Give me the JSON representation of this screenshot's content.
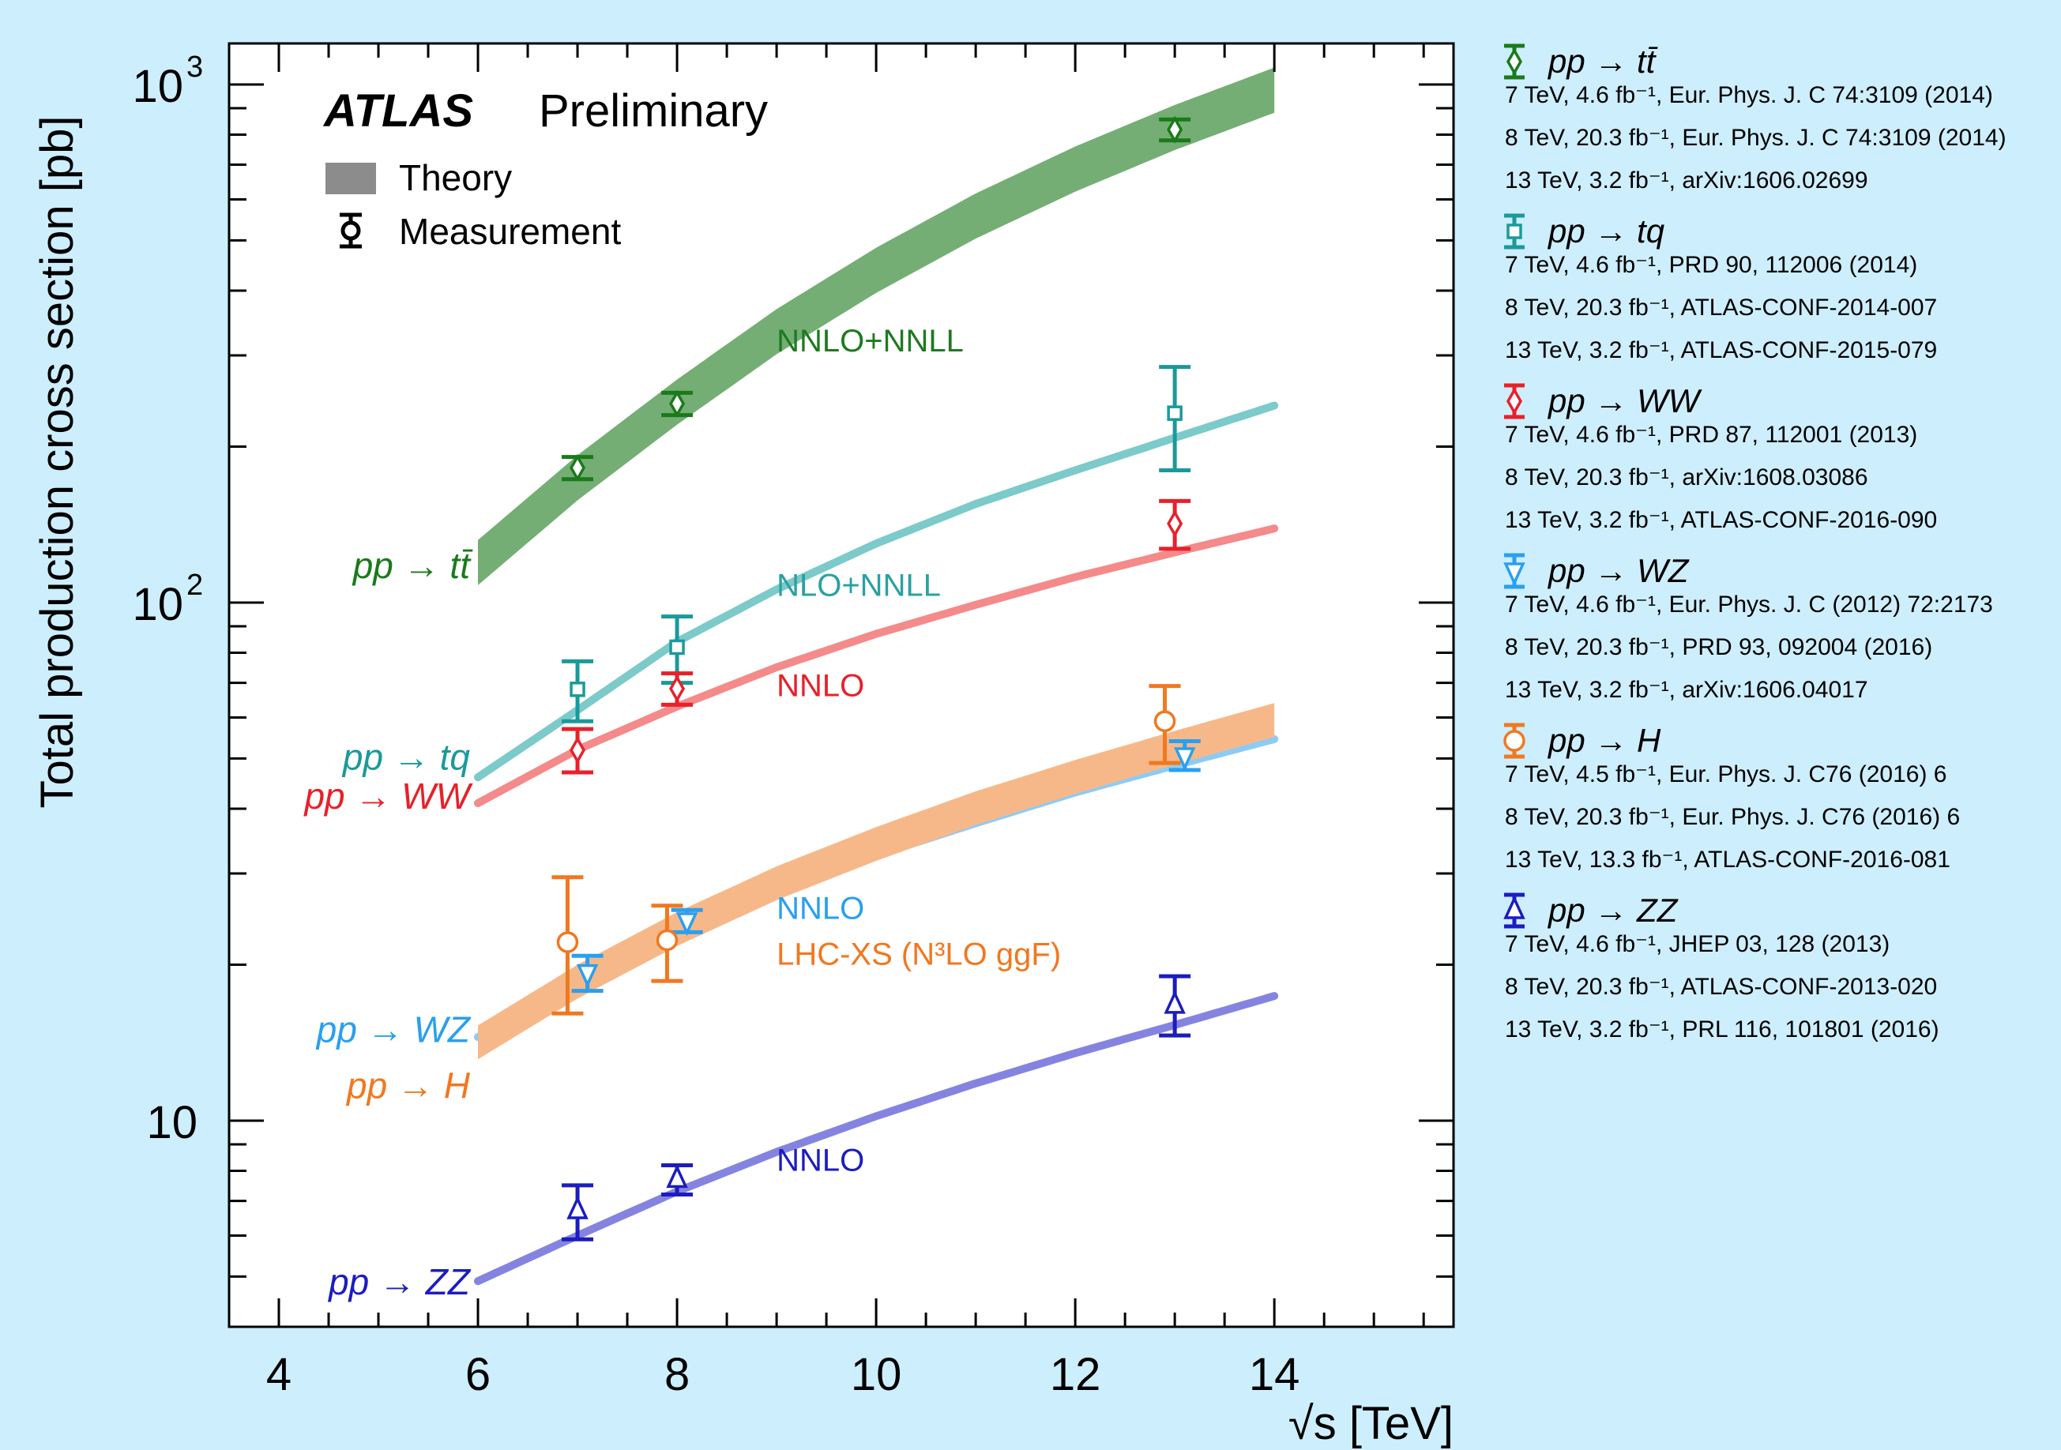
{
  "chart_data": {
    "type": "scatter",
    "title": "",
    "xlabel": "√s  [TeV]",
    "ylabel": "Total production cross section [pb]",
    "xlim": [
      3.5,
      15.8
    ],
    "ylim_log": [
      4.0,
      1200
    ],
    "y_scale": "log",
    "x_ticks": [
      4,
      6,
      8,
      10,
      12,
      14
    ],
    "y_tick_labels": [
      {
        "value": 10,
        "base": "10",
        "exp": ""
      },
      {
        "value": 100,
        "base": "10",
        "exp": "2"
      },
      {
        "value": 1000,
        "base": "10",
        "exp": "3"
      }
    ],
    "header": {
      "atlas": "ATLAS",
      "preliminary": "Preliminary"
    },
    "key": {
      "theory": "Theory",
      "measurement": "Measurement"
    },
    "theory_labels": [
      {
        "text": "NNLO+NNLL",
        "color": "#1f7a1f",
        "x": 9.0,
        "y": 305
      },
      {
        "text": "NLO+NNLL",
        "color": "#2aa1a1",
        "x": 9.0,
        "y": 103
      },
      {
        "text": "NNLO",
        "color": "#e8202a",
        "x": 9.0,
        "y": 66
      },
      {
        "text": "NNLO",
        "color": "#2a9ff0",
        "x": 9.0,
        "y": 24.5
      },
      {
        "text": "LHC-XS (N³LO ggF)",
        "color": "#f07820",
        "x": 9.0,
        "y": 20
      },
      {
        "text": "NNLO",
        "color": "#1c1cc0",
        "x": 9.0,
        "y": 8.0
      }
    ],
    "series": [
      {
        "name": "pp → tt̄",
        "color": "#1a7a1a",
        "band": "#74ae74",
        "marker": "diamond",
        "label_y": 117,
        "theory": {
          "x": [
            6,
            7,
            8,
            9,
            10,
            11,
            12,
            13,
            14
          ],
          "y": [
            120,
            175,
            245,
            335,
            440,
            560,
            690,
            830,
            980
          ]
        },
        "band_rel": 0.1,
        "points": [
          {
            "x": 7,
            "y": 182,
            "lo": 173,
            "hi": 191
          },
          {
            "x": 8,
            "y": 242,
            "lo": 230,
            "hi": 254
          },
          {
            "x": 13,
            "y": 818,
            "lo": 780,
            "hi": 856
          }
        ],
        "refs": [
          "7 TeV, 4.6 fb⁻¹, Eur. Phys. J. C 74:3109 (2014)",
          "8 TeV, 20.3 fb⁻¹, Eur. Phys. J. C 74:3109 (2014)",
          "13 TeV, 3.2 fb⁻¹, arXiv:1606.02699"
        ]
      },
      {
        "name": "pp → tq",
        "color": "#1a9a9a",
        "band": "#7ccaca",
        "marker": "square",
        "label_y": 50,
        "theory": {
          "x": [
            6,
            7,
            8,
            9,
            10,
            11,
            12,
            13,
            14
          ],
          "y": [
            46,
            62,
            84,
            106,
            130,
            155,
            180,
            208,
            240
          ]
        },
        "points": [
          {
            "x": 7,
            "y": 68,
            "lo": 59,
            "hi": 77
          },
          {
            "x": 8,
            "y": 82,
            "lo": 70,
            "hi": 94
          },
          {
            "x": 13,
            "y": 232,
            "lo": 180,
            "hi": 285
          }
        ],
        "refs": [
          "7 TeV, 4.6 fb⁻¹, PRD 90, 112006 (2014)",
          "8 TeV, 20.3 fb⁻¹, ATLAS-CONF-2014-007",
          "13 TeV, 3.2 fb⁻¹, ATLAS-CONF-2015-079"
        ]
      },
      {
        "name": "pp → WW",
        "color": "#e8202a",
        "band": "#f48a8a",
        "marker": "diamond",
        "label_y": 42,
        "theory": {
          "x": [
            6,
            7,
            8,
            9,
            10,
            11,
            12,
            13,
            14
          ],
          "y": [
            41,
            52,
            63,
            75,
            87,
            99,
            112,
            125,
            139
          ]
        },
        "points": [
          {
            "x": 7,
            "y": 51.9,
            "lo": 47,
            "hi": 57
          },
          {
            "x": 8,
            "y": 68.2,
            "lo": 63.5,
            "hi": 73
          },
          {
            "x": 13,
            "y": 142,
            "lo": 127,
            "hi": 157
          }
        ],
        "refs": [
          "7 TeV, 4.6 fb⁻¹, PRD 87, 112001 (2013)",
          "8 TeV, 20.3 fb⁻¹, arXiv:1608.03086",
          "13 TeV, 3.2 fb⁻¹, ATLAS-CONF-2016-090"
        ]
      },
      {
        "name": "pp → WZ",
        "color": "#2a9ff0",
        "band": "#8dcbf5",
        "marker": "triangle-down",
        "label_y": 14.9,
        "theory": {
          "x": [
            6,
            7,
            8,
            9,
            10,
            11,
            12,
            13,
            14
          ],
          "y": [
            14.5,
            18.5,
            23.0,
            27.5,
            32.5,
            37.5,
            43.0,
            48.5,
            54.5
          ]
        },
        "points": [
          {
            "x": 7.1,
            "y": 19.3,
            "lo": 17.8,
            "hi": 20.8
          },
          {
            "x": 8.1,
            "y": 24.3,
            "lo": 23.1,
            "hi": 25.5
          },
          {
            "x": 13.1,
            "y": 50.6,
            "lo": 47.5,
            "hi": 54.0
          }
        ],
        "refs": [
          "7 TeV, 4.6 fb⁻¹, Eur. Phys. J. C (2012) 72:2173",
          "8 TeV, 20.3 fb⁻¹, PRD 93, 092004 (2016)",
          "13 TeV, 3.2 fb⁻¹, arXiv:1606.04017"
        ]
      },
      {
        "name": "pp → H",
        "color": "#f07820",
        "band": "#f7b889",
        "marker": "circle",
        "label_y": 11.6,
        "theory": {
          "x": [
            6,
            7,
            8,
            9,
            10,
            11,
            12,
            13,
            14
          ],
          "y": [
            14.2,
            18.6,
            23.5,
            28.8,
            34.3,
            40.2,
            46.2,
            52.6,
            59.5
          ]
        },
        "band_rel": 0.075,
        "points": [
          {
            "x": 6.9,
            "y": 22.1,
            "lo": 16.1,
            "hi": 29.5
          },
          {
            "x": 7.9,
            "y": 22.3,
            "lo": 18.6,
            "hi": 26.0
          },
          {
            "x": 12.9,
            "y": 59,
            "lo": 49,
            "hi": 69
          }
        ],
        "refs": [
          "7 TeV, 4.5 fb⁻¹, Eur. Phys. J. C76 (2016) 6",
          "8 TeV, 20.3 fb⁻¹, Eur. Phys. J. C76 (2016) 6",
          "13 TeV, 13.3 fb⁻¹, ATLAS-CONF-2016-081"
        ]
      },
      {
        "name": "pp → ZZ",
        "color": "#1c1cc0",
        "band": "#8484e0",
        "marker": "triangle-up",
        "label_y": 4.85,
        "theory": {
          "x": [
            6,
            7,
            8,
            9,
            10,
            11,
            12,
            13,
            14
          ],
          "y": [
            4.9,
            6.0,
            7.3,
            8.7,
            10.2,
            11.8,
            13.5,
            15.3,
            17.4
          ]
        },
        "points": [
          {
            "x": 7,
            "y": 6.7,
            "lo": 5.9,
            "hi": 7.5
          },
          {
            "x": 8,
            "y": 7.7,
            "lo": 7.2,
            "hi": 8.2
          },
          {
            "x": 13,
            "y": 16.7,
            "lo": 14.6,
            "hi": 19.0
          }
        ],
        "refs": [
          "7 TeV, 4.6 fb⁻¹, JHEP 03, 128 (2013)",
          "8 TeV, 20.3 fb⁻¹, ATLAS-CONF-2013-020",
          "13 TeV, 3.2 fb⁻¹, PRL 116, 101801 (2016)"
        ]
      }
    ]
  }
}
